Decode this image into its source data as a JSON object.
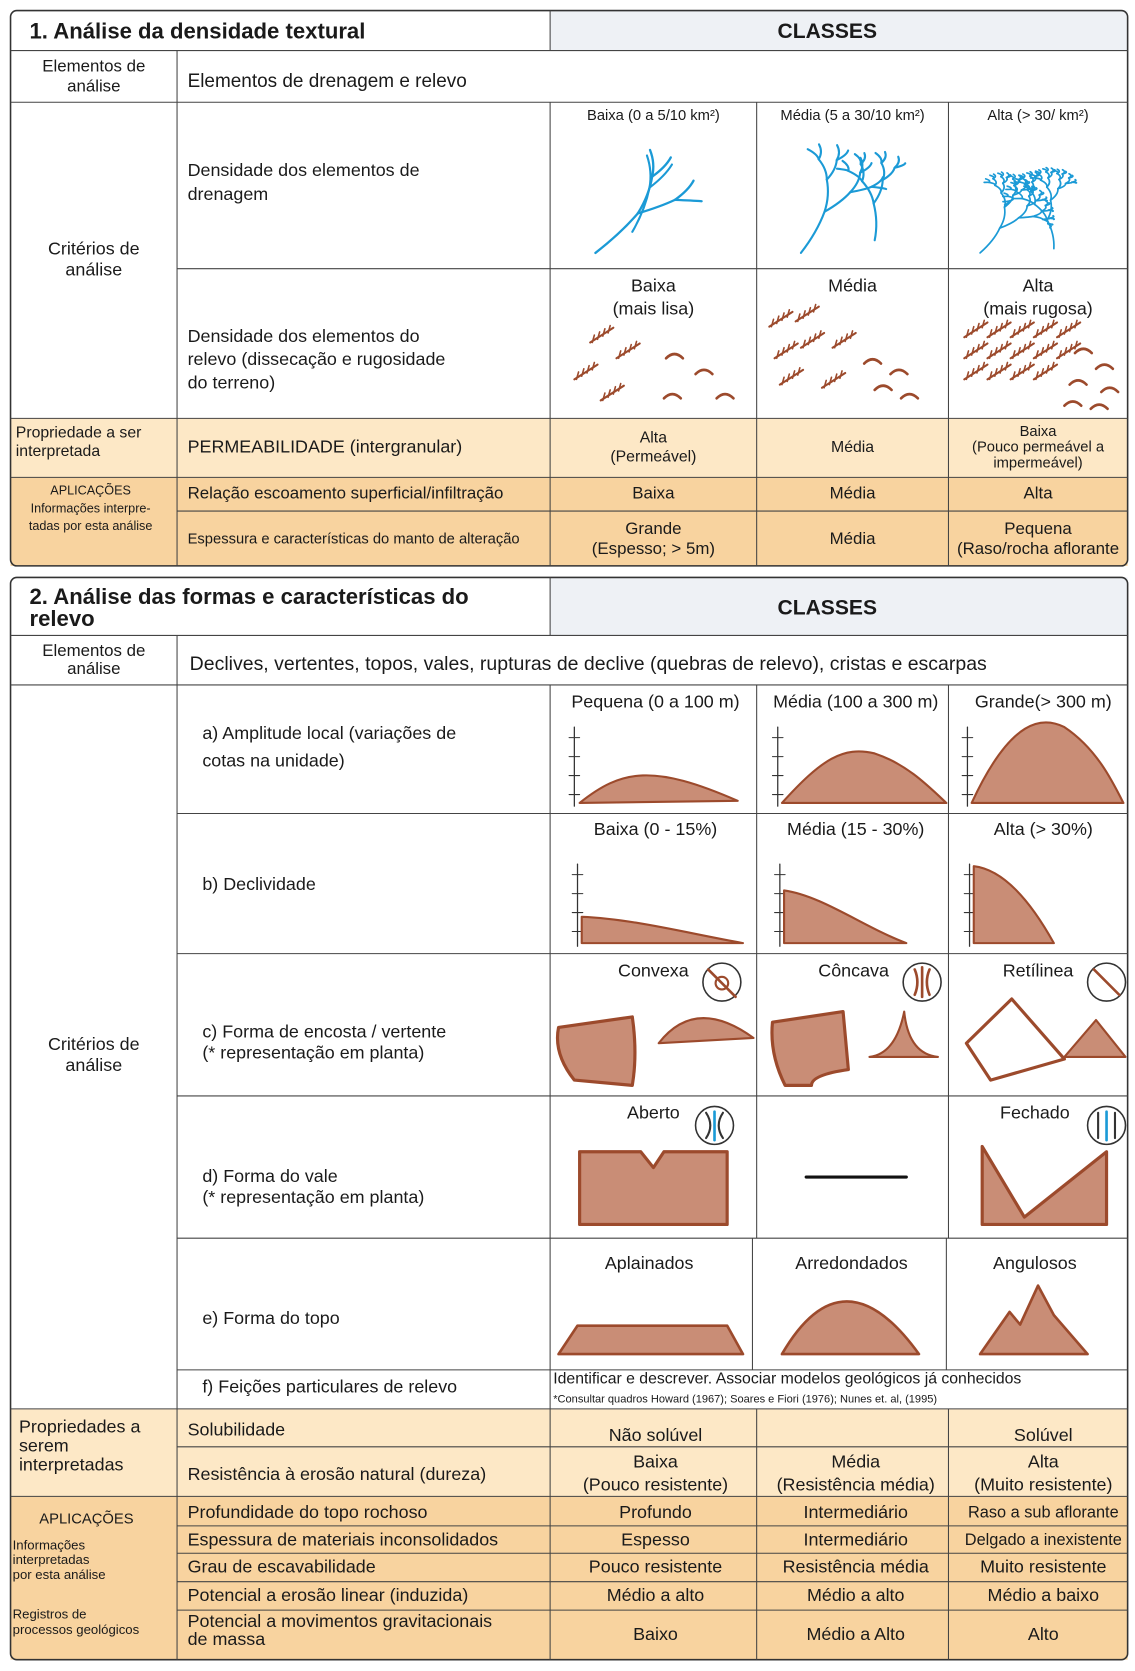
{
  "section1": {
    "title": "1. Análise da densidade textural",
    "classes_header": "CLASSES",
    "elements_label": [
      "Elementos de",
      "análise"
    ],
    "elements_value": "Elementos de drenagem e relevo",
    "criteria_label": [
      "Critérios de",
      "análise"
    ],
    "drainage": {
      "label": [
        "Densidade dos elementos de",
        "drenagem"
      ],
      "classes": [
        "Baixa (0 a 5/10 km²)",
        "Média (5 a 30/10 km²)",
        "Alta (> 30/ km²)"
      ]
    },
    "relief": {
      "label": [
        "Densidade dos elementos do",
        "relevo (dissecação e rugosidade",
        "do terreno)"
      ],
      "classes": [
        [
          "Baixa",
          "(mais lisa)"
        ],
        "Média",
        [
          "Alta",
          "(mais rugosa)"
        ]
      ]
    },
    "property": {
      "label": [
        "Propriedade a ser",
        "interpretada"
      ],
      "name": "PERMEABILIDADE (intergranular)",
      "values": [
        [
          "Alta",
          "(Permeável)"
        ],
        "Média",
        [
          "Baixa",
          "(Pouco permeável a",
          "impermeável)"
        ]
      ]
    },
    "applications": {
      "label": [
        "APLICAÇÕES",
        "Informações interpre-",
        "tadas por esta análise"
      ],
      "rows": [
        {
          "name": "Relação escoamento superficial/infiltração",
          "values": [
            "Baixa",
            "Média",
            "Alta"
          ]
        },
        {
          "name": "Espessura e características do manto de alteração",
          "values": [
            [
              "Grande",
              "(Espesso; > 5m)"
            ],
            "Média",
            [
              "Pequena",
              "(Raso/rocha aflorante"
            ]
          ]
        }
      ]
    }
  },
  "section2": {
    "title": [
      "2. Análise das formas e características do",
      "relevo"
    ],
    "classes_header": "CLASSES",
    "elements_label": [
      "Elementos de",
      "análise"
    ],
    "elements_value": "Declives, vertentes, topos, vales, rupturas de declive (quebras de relevo), cristas e escarpas",
    "criteria_label": [
      "Critérios de",
      "análise"
    ],
    "amplitude": {
      "label": [
        "a) Amplitude local (variações de",
        "cotas na unidade)"
      ],
      "classes": [
        "Pequena (0 a 100 m)",
        "Média (100 a 300 m)",
        "Grande(> 300 m)"
      ]
    },
    "slope": {
      "label": "b) Declividade",
      "classes": [
        "Baixa (0 - 15%)",
        "Média (15 - 30%)",
        "Alta (> 30%)"
      ]
    },
    "hillside": {
      "label": [
        "c) Forma de encosta / vertente",
        "(* representação em planta)"
      ],
      "classes": [
        "Convexa",
        "Côncava",
        "Retílinea"
      ]
    },
    "valley": {
      "label": [
        "d) Forma do vale",
        "(* representação em planta)"
      ],
      "classes": [
        "Aberto",
        "Fechado"
      ]
    },
    "top": {
      "label": "e) Forma do topo",
      "classes": [
        "Aplainados",
        "Arredondados",
        "Angulosos"
      ]
    },
    "features": {
      "label": "f) Feições particulares de relevo",
      "text": "Identificar e descrever. Associar modelos geológicos já conhecidos",
      "note": "*Consultar quadros Howard (1967); Soares e Fiori (1976); Nunes et. al, (1995)"
    },
    "properties": {
      "label": [
        "Propriedades a",
        "serem",
        "interpretadas"
      ],
      "rows": [
        {
          "name": "Solubilidade",
          "values": [
            "Não solúvel",
            null,
            "Solúvel"
          ]
        },
        {
          "name": "Resistência à erosão natural (dureza)",
          "values": [
            [
              "Baixa",
              "(Pouco resistente)"
            ],
            [
              "Média",
              "(Resistência média)"
            ],
            [
              "Alta",
              "(Muito resistente)"
            ]
          ]
        }
      ]
    },
    "applications": {
      "label": "APLICAÇÕES",
      "info": [
        "Informações",
        "interpretadas",
        "por esta análise"
      ],
      "records": [
        "Registros de",
        "processos geológicos"
      ],
      "rows": [
        {
          "name": "Profundidade do topo rochoso",
          "values": [
            "Profundo",
            "Intermediário",
            "Raso a sub aflorante"
          ]
        },
        {
          "name": "Espessura de materiais inconsolidados",
          "values": [
            "Espesso",
            "Intermediário",
            "Delgado a inexistente"
          ]
        },
        {
          "name": "Grau de escavabilidade",
          "values": [
            "Pouco resistente",
            "Resistência média",
            "Muito resistente"
          ]
        },
        {
          "name": "Potencial a erosão linear (induzida)",
          "values": [
            "Médio a alto",
            "Médio a alto",
            "Médio a baixo"
          ]
        },
        {
          "name": [
            "Potencial a movimentos gravitacionais",
            "de massa"
          ],
          "values": [
            "Baixo",
            "Médio a Alto",
            "Alto"
          ]
        }
      ]
    }
  }
}
